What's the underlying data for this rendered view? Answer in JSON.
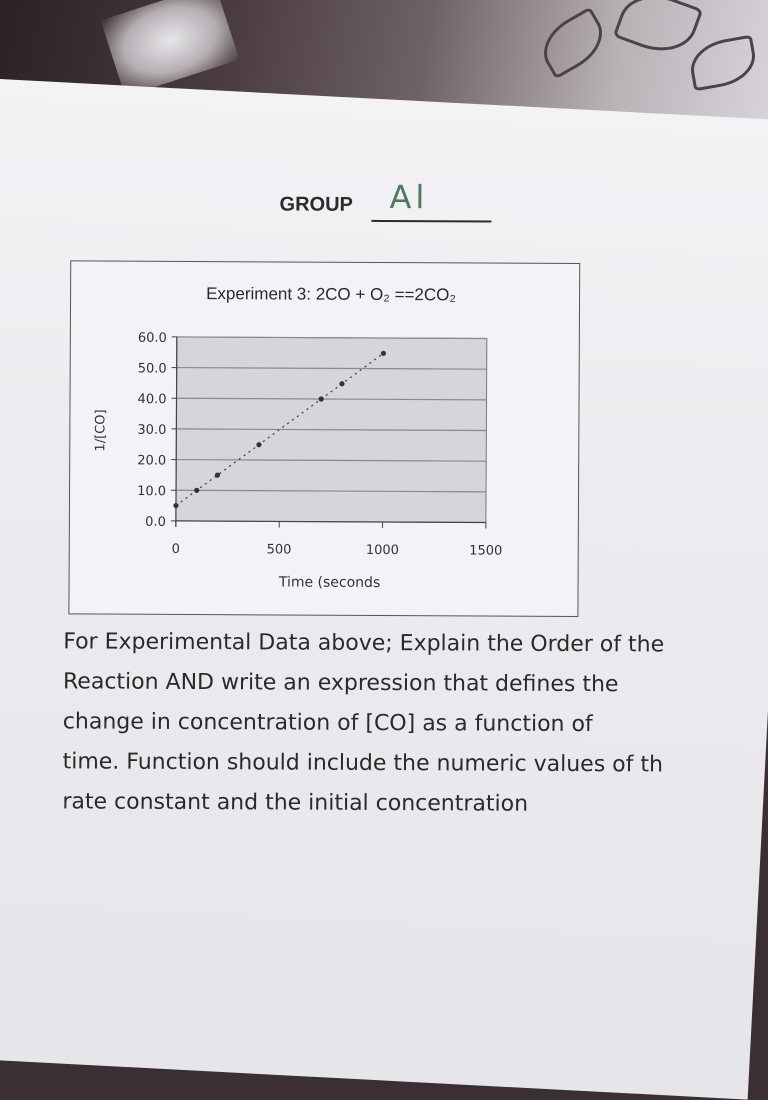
{
  "group": {
    "label": "GROUP",
    "value": "Al"
  },
  "chart_data": {
    "type": "scatter",
    "title": "Experiment 3: 2CO + O₂ ==2CO₂",
    "xlabel": "Time (seconds",
    "ylabel": "1/[CO]",
    "xlim": [
      0,
      1500
    ],
    "ylim": [
      0,
      60
    ],
    "xticks": [
      "0",
      "500",
      "1000",
      "1500"
    ],
    "yticks": [
      "0.0",
      "10.0",
      "20.0",
      "30.0",
      "40.0",
      "50.0",
      "60.0"
    ],
    "grid": true,
    "trendline": "linear, dotted",
    "series": [
      {
        "points": [
          {
            "x": 0,
            "y": 5.0
          },
          {
            "x": 100,
            "y": 10.0
          },
          {
            "x": 200,
            "y": 15.0
          },
          {
            "x": 400,
            "y": 25.0
          },
          {
            "x": 700,
            "y": 40.0
          },
          {
            "x": 800,
            "y": 45.0
          },
          {
            "x": 1000,
            "y": 55.0
          }
        ]
      }
    ],
    "colors": {
      "plot_bg": "#d6d5d9",
      "grid": "#8a898e",
      "points": "#333333"
    }
  },
  "question": {
    "lines": [
      "For Experimental Data above; Explain the Order of the",
      "Reaction AND write an expression that defines the",
      "change in concentration of [CO] as a function of",
      "time.  Function should include the numeric values of th",
      "rate constant and the initial concentration"
    ]
  }
}
